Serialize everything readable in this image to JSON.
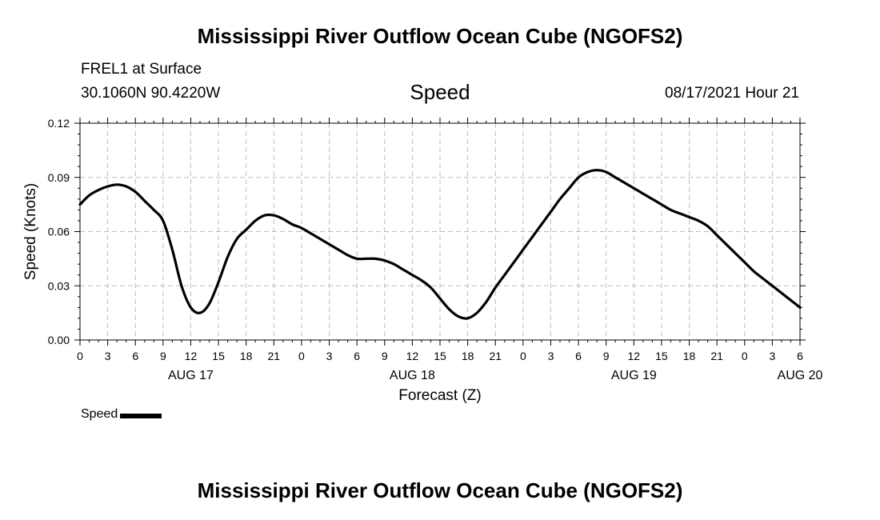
{
  "header": {
    "title": "Mississippi River Outflow Ocean Cube (NGOFS2)",
    "station": "FREL1 at Surface",
    "coordinates": "30.1060N  90.4220W",
    "datetime": "08/17/2021 Hour 21"
  },
  "footer": {
    "title": "Mississippi River Outflow Ocean Cube (NGOFS2)"
  },
  "chart_data": {
    "type": "line",
    "title": "Speed",
    "xlabel": "Forecast (Z)",
    "ylabel": "Speed (Knots)",
    "ylim": [
      0,
      0.12
    ],
    "yticks": [
      "0.00",
      "0.03",
      "0.06",
      "0.09",
      "0.12"
    ],
    "xlim_hours": [
      0,
      78
    ],
    "xtick_labels": [
      "0",
      "3",
      "6",
      "9",
      "12",
      "15",
      "18",
      "21",
      "0",
      "3",
      "6",
      "9",
      "12",
      "15",
      "18",
      "21",
      "0",
      "3",
      "6",
      "9",
      "12",
      "15",
      "18",
      "21",
      "0",
      "3",
      "6"
    ],
    "date_labels": [
      {
        "label": "AUG 17",
        "hour": 12
      },
      {
        "label": "AUG 18",
        "hour": 36
      },
      {
        "label": "AUG 19",
        "hour": 60
      },
      {
        "label": "AUG 20",
        "hour": 78
      }
    ],
    "grid": true,
    "legend": "bottom-left",
    "series": [
      {
        "name": "Speed",
        "color": "#000000",
        "x": [
          0,
          1,
          2,
          3,
          4,
          5,
          6,
          7,
          8,
          9,
          10,
          11,
          12,
          13,
          14,
          15,
          16,
          17,
          18,
          19,
          20,
          21,
          22,
          23,
          24,
          25,
          26,
          27,
          28,
          29,
          30,
          31,
          32,
          33,
          34,
          35,
          36,
          37,
          38,
          39,
          40,
          41,
          42,
          43,
          44,
          45,
          46,
          47,
          48,
          49,
          50,
          51,
          52,
          53,
          54,
          55,
          56,
          57,
          58,
          59,
          60,
          61,
          62,
          63,
          64,
          65,
          66,
          67,
          68,
          69,
          70,
          71,
          72,
          73,
          74,
          75,
          76,
          77,
          78
        ],
        "values": [
          0.075,
          0.08,
          0.083,
          0.085,
          0.086,
          0.085,
          0.082,
          0.077,
          0.072,
          0.066,
          0.05,
          0.03,
          0.018,
          0.015,
          0.02,
          0.032,
          0.046,
          0.056,
          0.061,
          0.066,
          0.069,
          0.069,
          0.067,
          0.064,
          0.062,
          0.059,
          0.056,
          0.053,
          0.05,
          0.047,
          0.045,
          0.045,
          0.045,
          0.044,
          0.042,
          0.039,
          0.036,
          0.033,
          0.029,
          0.023,
          0.017,
          0.013,
          0.012,
          0.015,
          0.021,
          0.029,
          0.036,
          0.043,
          0.05,
          0.057,
          0.064,
          0.071,
          0.078,
          0.084,
          0.09,
          0.093,
          0.094,
          0.093,
          0.09,
          0.087,
          0.084,
          0.081,
          0.078,
          0.075,
          0.072,
          0.07,
          0.068,
          0.066,
          0.063,
          0.058,
          0.053,
          0.048,
          0.043,
          0.038,
          0.034,
          0.03,
          0.026,
          0.022,
          0.018
        ]
      }
    ]
  }
}
